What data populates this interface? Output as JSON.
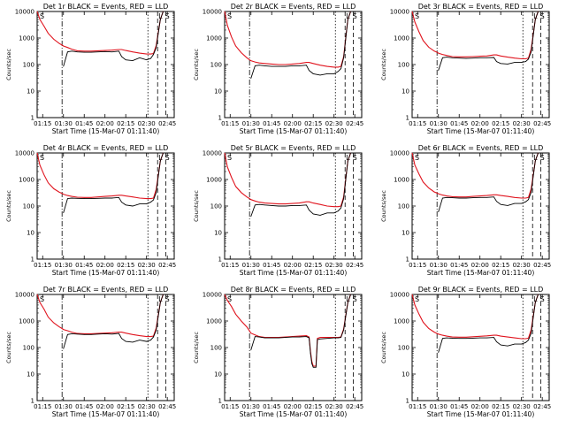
{
  "colors": {
    "events": "#000000",
    "lld": "#e0141e",
    "axis": "#000000",
    "background": "#ffffff"
  },
  "shared": {
    "xlabel": "Start Time (15-Mar-07 01:11:40)",
    "ylabel": "Counts/sec",
    "x_tick_labels": [
      "01:15",
      "01:30",
      "01:45",
      "02:00",
      "02:15",
      "02:30",
      "02:45"
    ],
    "y_tick_labels": [
      "1",
      "10",
      "100",
      "1000",
      "10000"
    ],
    "xlim": [
      "01:11",
      "02:50"
    ],
    "ylim": [
      1,
      10000
    ],
    "y_scale": "log",
    "corner_labels": {
      "left": "S",
      "middle": "L",
      "right": "S"
    }
  },
  "chart_data": [
    {
      "type": "line",
      "title": "Det 1r BLACK = Events, RED = LLD",
      "x": [
        "01:11",
        "01:13",
        "01:16",
        "01:19",
        "01:23",
        "01:27",
        "01:29",
        "01:30",
        "01:33",
        "01:36",
        "01:40",
        "01:45",
        "01:50",
        "01:55",
        "02:00",
        "02:05",
        "02:10",
        "02:12",
        "02:15",
        "02:20",
        "02:25",
        "02:30",
        "02:33",
        "02:35",
        "02:37",
        "02:40",
        "02:42"
      ],
      "series": [
        {
          "name": "LLD",
          "values": [
            10000,
            5000,
            2800,
            1500,
            900,
            620,
            540,
            500,
            440,
            380,
            330,
            320,
            320,
            330,
            340,
            350,
            370,
            370,
            340,
            300,
            270,
            250,
            250,
            260,
            520,
            5000,
            10000
          ]
        },
        {
          "name": "Events",
          "values": [
            null,
            null,
            null,
            null,
            null,
            null,
            null,
            85,
            300,
            320,
            300,
            290,
            290,
            300,
            310,
            300,
            320,
            200,
            150,
            140,
            180,
            150,
            170,
            240,
            430,
            5000,
            10000
          ]
        }
      ]
    },
    {
      "type": "line",
      "title": "Det 2r BLACK = Events, RED = LLD",
      "x": [
        "01:11",
        "01:13",
        "01:16",
        "01:19",
        "01:23",
        "01:27",
        "01:29",
        "01:30",
        "01:33",
        "01:36",
        "01:40",
        "01:45",
        "01:50",
        "01:55",
        "02:00",
        "02:05",
        "02:10",
        "02:12",
        "02:15",
        "02:20",
        "02:25",
        "02:30",
        "02:33",
        "02:35",
        "02:37",
        "02:40",
        "02:42"
      ],
      "series": [
        {
          "name": "LLD",
          "values": [
            10000,
            3000,
            1100,
            500,
            280,
            180,
            150,
            140,
            125,
            115,
            110,
            105,
            100,
            100,
            105,
            110,
            120,
            120,
            110,
            95,
            85,
            80,
            80,
            85,
            200,
            5000,
            10000
          ]
        },
        {
          "name": "Events",
          "values": [
            null,
            null,
            null,
            null,
            null,
            null,
            null,
            30,
            90,
            95,
            90,
            85,
            85,
            85,
            90,
            90,
            95,
            60,
            45,
            40,
            45,
            45,
            55,
            70,
            180,
            5000,
            10000
          ]
        }
      ]
    },
    {
      "type": "line",
      "title": "Det 3r BLACK = Events, RED = LLD",
      "x": [
        "01:11",
        "01:13",
        "01:16",
        "01:19",
        "01:23",
        "01:27",
        "01:29",
        "01:30",
        "01:33",
        "01:36",
        "01:40",
        "01:45",
        "01:50",
        "01:55",
        "02:00",
        "02:05",
        "02:10",
        "02:12",
        "02:15",
        "02:20",
        "02:25",
        "02:30",
        "02:33",
        "02:35",
        "02:37",
        "02:40",
        "02:42"
      ],
      "series": [
        {
          "name": "LLD",
          "values": [
            10000,
            4000,
            1700,
            800,
            450,
            320,
            290,
            270,
            240,
            220,
            200,
            195,
            195,
            200,
            205,
            210,
            230,
            230,
            210,
            190,
            175,
            165,
            165,
            175,
            380,
            5000,
            10000
          ]
        },
        {
          "name": "Events",
          "values": [
            null,
            null,
            null,
            null,
            null,
            null,
            null,
            60,
            180,
            190,
            180,
            175,
            170,
            175,
            180,
            180,
            185,
            130,
            110,
            105,
            120,
            120,
            130,
            160,
            300,
            5000,
            10000
          ]
        }
      ]
    },
    {
      "type": "line",
      "title": "Det 4r BLACK = Events, RED = LLD",
      "x": [
        "01:11",
        "01:13",
        "01:16",
        "01:19",
        "01:23",
        "01:27",
        "01:29",
        "01:30",
        "01:33",
        "01:36",
        "01:40",
        "01:45",
        "01:50",
        "01:55",
        "02:00",
        "02:05",
        "02:10",
        "02:12",
        "02:15",
        "02:20",
        "02:25",
        "02:30",
        "02:33",
        "02:35",
        "02:37",
        "02:40",
        "02:42"
      ],
      "series": [
        {
          "name": "LLD",
          "values": [
            10000,
            3500,
            1500,
            750,
            450,
            330,
            300,
            280,
            250,
            230,
            215,
            210,
            210,
            220,
            230,
            240,
            255,
            255,
            240,
            220,
            200,
            190,
            190,
            200,
            420,
            5000,
            10000
          ]
        },
        {
          "name": "Events",
          "values": [
            null,
            null,
            null,
            null,
            null,
            null,
            null,
            55,
            190,
            200,
            195,
            190,
            190,
            195,
            200,
            200,
            210,
            140,
            110,
            100,
            120,
            120,
            140,
            170,
            320,
            5000,
            10000
          ]
        }
      ]
    },
    {
      "type": "line",
      "title": "Det 5r BLACK = Events, RED = LLD",
      "x": [
        "01:11",
        "01:13",
        "01:16",
        "01:19",
        "01:23",
        "01:27",
        "01:29",
        "01:30",
        "01:33",
        "01:36",
        "01:40",
        "01:45",
        "01:50",
        "01:55",
        "02:00",
        "02:05",
        "02:10",
        "02:12",
        "02:15",
        "02:20",
        "02:25",
        "02:30",
        "02:33",
        "02:35",
        "02:37",
        "02:40",
        "02:42"
      ],
      "series": [
        {
          "name": "LLD",
          "values": [
            10000,
            3000,
            1200,
            550,
            320,
            220,
            190,
            175,
            155,
            140,
            130,
            125,
            120,
            120,
            125,
            130,
            145,
            145,
            130,
            115,
            100,
            95,
            95,
            100,
            220,
            5000,
            10000
          ]
        },
        {
          "name": "Events",
          "values": [
            null,
            null,
            null,
            null,
            null,
            null,
            null,
            40,
            110,
            115,
            110,
            105,
            100,
            100,
            105,
            105,
            110,
            70,
            50,
            45,
            55,
            55,
            65,
            85,
            190,
            5000,
            10000
          ]
        }
      ]
    },
    {
      "type": "line",
      "title": "Det 6r BLACK = Events, RED = LLD",
      "x": [
        "01:11",
        "01:13",
        "01:16",
        "01:19",
        "01:23",
        "01:27",
        "01:29",
        "01:30",
        "01:33",
        "01:36",
        "01:40",
        "01:45",
        "01:50",
        "01:55",
        "02:00",
        "02:05",
        "02:10",
        "02:12",
        "02:15",
        "02:20",
        "02:25",
        "02:30",
        "02:33",
        "02:35",
        "02:37",
        "02:40",
        "02:42"
      ],
      "series": [
        {
          "name": "LLD",
          "values": [
            10000,
            3500,
            1600,
            800,
            480,
            340,
            310,
            290,
            260,
            240,
            225,
            220,
            220,
            230,
            240,
            250,
            265,
            265,
            250,
            230,
            210,
            200,
            200,
            210,
            440,
            5000,
            10000
          ]
        },
        {
          "name": "Events",
          "values": [
            null,
            null,
            null,
            null,
            null,
            null,
            null,
            60,
            200,
            210,
            205,
            200,
            200,
            205,
            210,
            210,
            220,
            150,
            115,
            105,
            125,
            125,
            145,
            175,
            330,
            5000,
            10000
          ]
        }
      ]
    },
    {
      "type": "line",
      "title": "Det 7r BLACK = Events, RED = LLD",
      "x": [
        "01:11",
        "01:13",
        "01:16",
        "01:19",
        "01:23",
        "01:27",
        "01:29",
        "01:30",
        "01:33",
        "01:36",
        "01:40",
        "01:45",
        "01:50",
        "01:55",
        "02:00",
        "02:05",
        "02:10",
        "02:12",
        "02:15",
        "02:20",
        "02:25",
        "02:30",
        "02:33",
        "02:35",
        "02:37",
        "02:40",
        "02:42"
      ],
      "series": [
        {
          "name": "LLD",
          "values": [
            10000,
            5000,
            2800,
            1400,
            850,
            600,
            520,
            480,
            430,
            380,
            340,
            330,
            330,
            340,
            350,
            360,
            380,
            380,
            350,
            310,
            280,
            260,
            260,
            270,
            540,
            5000,
            10000
          ]
        },
        {
          "name": "Events",
          "values": [
            null,
            null,
            null,
            null,
            null,
            null,
            null,
            90,
            310,
            330,
            320,
            310,
            310,
            320,
            330,
            320,
            340,
            220,
            170,
            160,
            190,
            170,
            190,
            250,
            450,
            5000,
            10000
          ]
        }
      ]
    },
    {
      "type": "line",
      "title": "Det 8r BLACK = Events, RED = LLD",
      "x": [
        "01:11",
        "01:13",
        "01:16",
        "01:19",
        "01:23",
        "01:27",
        "01:29",
        "01:30",
        "01:33",
        "01:36",
        "01:40",
        "01:45",
        "01:50",
        "01:55",
        "02:00",
        "02:05",
        "02:10",
        "02:12",
        "02:13",
        "02:14",
        "02:15",
        "02:17",
        "02:18",
        "02:20",
        "02:25",
        "02:30",
        "02:33",
        "02:35",
        "02:37",
        "02:40",
        "02:42"
      ],
      "series": [
        {
          "name": "LLD",
          "values": [
            10000,
            6000,
            3500,
            1800,
            1000,
            600,
            420,
            350,
            300,
            260,
            240,
            240,
            240,
            250,
            260,
            270,
            280,
            250,
            70,
            30,
            20,
            20,
            220,
            240,
            240,
            240,
            240,
            250,
            500,
            5000,
            10000
          ]
        },
        {
          "name": "Events",
          "values": [
            null,
            null,
            null,
            null,
            null,
            null,
            null,
            80,
            260,
            250,
            230,
            230,
            230,
            240,
            250,
            250,
            260,
            230,
            60,
            25,
            18,
            18,
            200,
            210,
            220,
            230,
            230,
            240,
            460,
            5000,
            10000
          ]
        }
      ]
    },
    {
      "type": "line",
      "title": "Det 9r BLACK = Events, RED = LLD",
      "x": [
        "01:11",
        "01:13",
        "01:16",
        "01:19",
        "01:23",
        "01:27",
        "01:29",
        "01:30",
        "01:33",
        "01:36",
        "01:40",
        "01:45",
        "01:50",
        "01:55",
        "02:00",
        "02:05",
        "02:10",
        "02:12",
        "02:15",
        "02:20",
        "02:25",
        "02:30",
        "02:33",
        "02:35",
        "02:37",
        "02:40",
        "02:42"
      ],
      "series": [
        {
          "name": "LLD",
          "values": [
            10000,
            4000,
            1800,
            900,
            520,
            380,
            340,
            320,
            290,
            270,
            250,
            245,
            245,
            255,
            265,
            275,
            290,
            290,
            270,
            250,
            230,
            215,
            215,
            225,
            460,
            5000,
            10000
          ]
        },
        {
          "name": "Events",
          "values": [
            null,
            null,
            null,
            null,
            null,
            null,
            null,
            65,
            220,
            230,
            225,
            220,
            220,
            225,
            230,
            230,
            240,
            165,
            125,
            115,
            135,
            135,
            155,
            190,
            350,
            5000,
            10000
          ]
        }
      ]
    }
  ]
}
